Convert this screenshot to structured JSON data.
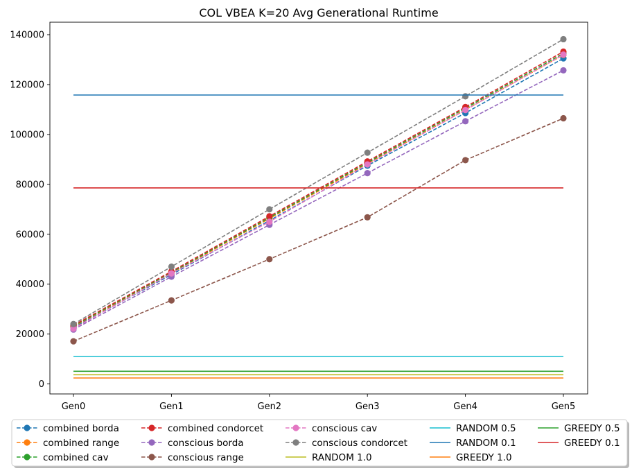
{
  "chart_data": {
    "type": "line",
    "title": "COL VBEA K=20 Avg Generational Runtime",
    "xlabel": "",
    "ylabel": "",
    "categories": [
      "Gen0",
      "Gen1",
      "Gen2",
      "Gen3",
      "Gen4",
      "Gen5"
    ],
    "ylim": [
      -4000,
      145000
    ],
    "yticks": [
      0,
      20000,
      40000,
      60000,
      80000,
      100000,
      120000,
      140000
    ],
    "ytick_labels": [
      "0",
      "20000",
      "40000",
      "60000",
      "80000",
      "100000",
      "120000",
      "140000"
    ],
    "grid": false,
    "legend_position": "bottom",
    "series": [
      {
        "name": "combined borda",
        "style": "dashed-marker",
        "color": "#1f77b4",
        "values": [
          22600,
          43800,
          65500,
          87500,
          108600,
          130500
        ]
      },
      {
        "name": "combined range",
        "style": "dashed-marker",
        "color": "#ff7f0e",
        "values": [
          23000,
          44400,
          66300,
          88300,
          109900,
          131900
        ]
      },
      {
        "name": "combined cav",
        "style": "dashed-marker",
        "color": "#2ca02c",
        "values": [
          23200,
          44700,
          66700,
          88700,
          110500,
          132500
        ]
      },
      {
        "name": "combined condorcet",
        "style": "dashed-marker",
        "color": "#d62728",
        "values": [
          23500,
          45100,
          67200,
          89200,
          111000,
          133200
        ]
      },
      {
        "name": "conscious borda",
        "style": "dashed-marker",
        "color": "#9467bd",
        "values": [
          21800,
          43000,
          63800,
          84500,
          105300,
          125700
        ]
      },
      {
        "name": "conscious range",
        "style": "dashed-marker",
        "color": "#8c564b",
        "values": [
          17100,
          33500,
          50000,
          66800,
          89700,
          106500
        ]
      },
      {
        "name": "conscious cav",
        "style": "dashed-marker",
        "color": "#e377c2",
        "values": [
          22200,
          44300,
          65000,
          88000,
          109800,
          132000
        ]
      },
      {
        "name": "conscious condorcet",
        "style": "dashed-marker",
        "color": "#7f7f7f",
        "values": [
          24000,
          47000,
          70000,
          92700,
          115300,
          138200
        ]
      },
      {
        "name": "RANDOM 1.0",
        "style": "solid",
        "color": "#bcbd22",
        "values": [
          3700,
          3700,
          3700,
          3700,
          3700,
          3700
        ]
      },
      {
        "name": "RANDOM 0.5",
        "style": "solid",
        "color": "#17becf",
        "values": [
          11000,
          11000,
          11000,
          11000,
          11000,
          11000
        ]
      },
      {
        "name": "RANDOM 0.1",
        "style": "solid",
        "color": "#1f77b4",
        "values": [
          115800,
          115800,
          115800,
          115800,
          115800,
          115800
        ]
      },
      {
        "name": "GREEDY 1.0",
        "style": "solid",
        "color": "#ff7f0e",
        "values": [
          2400,
          2400,
          2400,
          2400,
          2400,
          2400
        ]
      },
      {
        "name": "GREEDY 0.5",
        "style": "solid",
        "color": "#2ca02c",
        "values": [
          5100,
          5100,
          5100,
          5100,
          5100,
          5100
        ]
      },
      {
        "name": "GREEDY 0.1",
        "style": "solid",
        "color": "#d62728",
        "values": [
          78600,
          78600,
          78600,
          78600,
          78600,
          78600
        ]
      }
    ]
  }
}
